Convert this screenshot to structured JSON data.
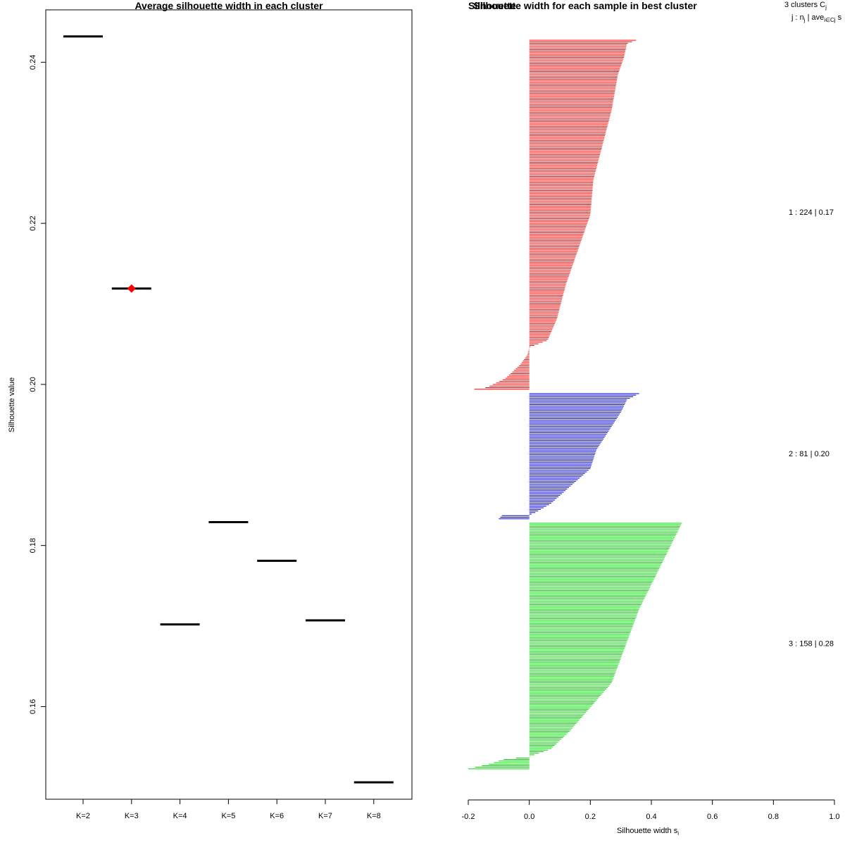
{
  "chart_data": [
    {
      "type": "scatter",
      "title": "Average silhouette width in each cluster",
      "xlabel": "",
      "ylabel": "Silhouette value",
      "categories": [
        "K=2",
        "K=3",
        "K=4",
        "K=5",
        "K=6",
        "K=7",
        "K=8"
      ],
      "values": [
        0.2432,
        0.2119,
        0.1702,
        0.1829,
        0.1781,
        0.1707,
        0.1506
      ],
      "best_category": "K=3",
      "best_marker_color": "#ff0000",
      "ylim": [
        0.1485,
        0.2465
      ],
      "yticks": [
        0.16,
        0.18,
        0.2,
        0.22,
        0.24
      ],
      "ytick_labels": [
        "0.16",
        "0.18",
        "0.20",
        "0.22",
        "0.24"
      ]
    },
    {
      "type": "bar",
      "orientation": "horizontal",
      "title": "Silhouette width for each sample in best cluster",
      "title_overlap_text": "Silhouette",
      "xlabel": "Silhouette width s",
      "xlabel_sub": "i",
      "xlim": [
        -0.2,
        1.0
      ],
      "xticks": [
        -0.2,
        0.0,
        0.2,
        0.4,
        0.6,
        0.8,
        1.0
      ],
      "xtick_labels": [
        "-0.2",
        "0.0",
        "0.2",
        "0.4",
        "0.6",
        "0.8",
        "1.0"
      ],
      "legend_header_line1": "3  clusters  C",
      "legend_header_line1_sub": "j",
      "legend_header_line2": "j :  n",
      "legend_header_line2_sub": "j",
      "legend_header_line2_mid": " | ave",
      "legend_header_line2_sub2": "i∈Cj",
      "legend_header_line2_tail": "  s",
      "clusters": [
        {
          "id": 1,
          "n": 224,
          "avg": "0.17",
          "color": "#ff0000",
          "label": "1 :  224  |  0.17",
          "profile": [
            [
              0,
              0.35
            ],
            [
              0.01,
              0.32
            ],
            [
              0.05,
              0.31
            ],
            [
              0.1,
              0.29
            ],
            [
              0.2,
              0.27
            ],
            [
              0.3,
              0.24
            ],
            [
              0.4,
              0.21
            ],
            [
              0.5,
              0.2
            ],
            [
              0.6,
              0.16
            ],
            [
              0.7,
              0.12
            ],
            [
              0.8,
              0.09
            ],
            [
              0.86,
              0.06
            ],
            [
              0.88,
              0.0
            ],
            [
              0.9,
              -0.005
            ],
            [
              0.93,
              -0.03
            ],
            [
              0.97,
              -0.08
            ],
            [
              0.995,
              -0.14
            ],
            [
              1,
              -0.18
            ]
          ]
        },
        {
          "id": 2,
          "n": 81,
          "avg": "0.20",
          "color": "#0000cc",
          "label": "2 :  81  |  0.20",
          "profile": [
            [
              0,
              0.36
            ],
            [
              0.05,
              0.32
            ],
            [
              0.15,
              0.3
            ],
            [
              0.3,
              0.26
            ],
            [
              0.45,
              0.22
            ],
            [
              0.6,
              0.2
            ],
            [
              0.75,
              0.13
            ],
            [
              0.88,
              0.07
            ],
            [
              0.95,
              0.02
            ],
            [
              0.97,
              0.0
            ],
            [
              0.975,
              -0.09
            ],
            [
              1,
              -0.1
            ]
          ]
        },
        {
          "id": 3,
          "n": 158,
          "avg": "0.28",
          "color": "#00dd00",
          "label": "3 :  158  |  0.28",
          "profile": [
            [
              0,
              0.5
            ],
            [
              0.05,
              0.48
            ],
            [
              0.15,
              0.44
            ],
            [
              0.25,
              0.4
            ],
            [
              0.35,
              0.36
            ],
            [
              0.45,
              0.33
            ],
            [
              0.55,
              0.3
            ],
            [
              0.65,
              0.27
            ],
            [
              0.75,
              0.2
            ],
            [
              0.85,
              0.13
            ],
            [
              0.92,
              0.07
            ],
            [
              0.95,
              0.0
            ],
            [
              0.96,
              -0.08
            ],
            [
              0.98,
              -0.13
            ],
            [
              1,
              -0.2
            ]
          ]
        }
      ]
    }
  ]
}
